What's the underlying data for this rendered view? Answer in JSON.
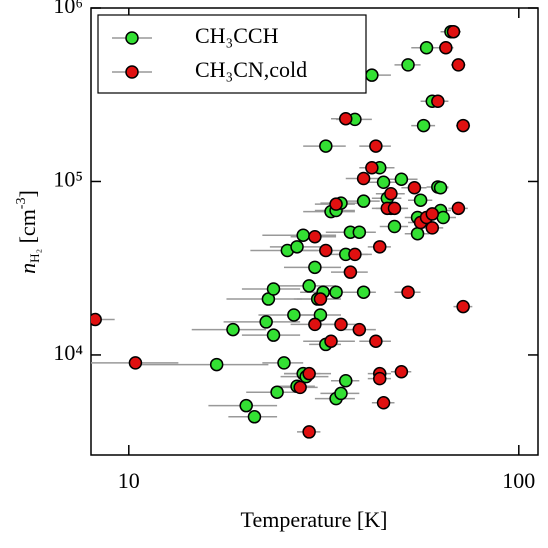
{
  "chart_data": {
    "type": "scatter",
    "xlabel": "Temperature [K]",
    "ylabel": {
      "var": "n",
      "sub": "H₂",
      "unit": " [cm",
      "sup": "-3",
      "end": "]"
    },
    "xlog": true,
    "ylog": true,
    "xlim": [
      8,
      112
    ],
    "ylim": [
      2650,
      1000000
    ],
    "xticks": [
      10,
      100
    ],
    "yticks": [
      {
        "value": 10000,
        "label": "10⁴"
      },
      {
        "value": 100000,
        "label": "10⁵"
      },
      {
        "value": 1000000,
        "label": "10⁶"
      }
    ],
    "legend": "upper left",
    "errorbar_color": "#999999",
    "series": [
      {
        "name": "CH₃CCH",
        "color": "#33e033",
        "x": [
          16.8,
          18.5,
          20,
          21,
          24,
          25,
          25.5,
          22.5,
          22.8,
          23.5,
          23.5,
          26.5,
          27,
          28,
          28,
          28.5,
          27,
          29,
          30,
          30.5,
          31,
          31.5,
          32,
          32,
          33,
          34,
          35,
          34,
          35,
          36,
          34,
          36,
          37,
          38,
          39,
          40,
          40,
          42,
          44,
          45,
          46,
          47,
          48,
          50,
          52,
          55,
          56,
          57,
          58,
          60,
          62,
          63,
          64,
          67,
          63,
          55
        ],
        "values": [
          8800,
          14000,
          5100,
          4400,
          6100,
          9000,
          40000,
          15500,
          21000,
          24000,
          13000,
          17000,
          42000,
          49000,
          7800,
          7500,
          6600,
          25000,
          32000,
          21000,
          17000,
          23000,
          11500,
          160000,
          67000,
          68000,
          75000,
          5600,
          6000,
          7100,
          23000,
          38000,
          51000,
          228000,
          51000,
          77000,
          23000,
          410000,
          120000,
          99000,
          80000,
          70000,
          55000,
          103000,
          470000,
          62000,
          78000,
          210000,
          590000,
          290000,
          93000,
          68000,
          62000,
          730000,
          92000,
          50000
        ],
        "xerr": [
          6,
          4,
          4,
          3,
          4,
          3,
          5,
          5,
          5,
          4,
          4,
          5,
          4,
          6,
          3,
          4,
          3,
          5,
          5,
          4,
          4,
          4,
          3,
          4,
          5,
          4,
          4,
          4,
          4,
          3,
          5,
          5,
          5,
          4,
          4,
          4,
          3,
          5,
          4,
          5,
          4,
          4,
          4,
          5,
          4,
          4,
          4,
          4,
          5,
          4,
          4,
          4,
          5,
          4,
          3,
          4
        ]
      },
      {
        "name": "CH₃CN,cold",
        "color": "#e01010",
        "x": [
          8.2,
          10.4,
          27.5,
          29,
          29,
          30,
          30,
          31,
          32,
          33,
          34,
          35,
          36,
          37,
          38,
          39,
          40,
          42,
          43,
          43,
          44,
          44,
          44,
          45,
          46,
          47,
          48,
          50,
          52,
          54,
          56,
          58,
          60,
          60,
          62,
          65,
          68,
          70,
          70,
          72,
          72
        ],
        "values": [
          16000,
          9000,
          6500,
          3600,
          7800,
          15000,
          48000,
          21000,
          40000,
          12000,
          74000,
          15000,
          230000,
          30000,
          38000,
          14000,
          104000,
          120000,
          160000,
          12000,
          42000,
          7800,
          7300,
          5300,
          70000,
          85000,
          70000,
          8000,
          23000,
          92000,
          58000,
          62000,
          54000,
          65000,
          290000,
          590000,
          730000,
          470000,
          70000,
          210000,
          19000
        ],
        "xerr": [
          1,
          3,
          3,
          2,
          4,
          4,
          4,
          4,
          4,
          5,
          4,
          4,
          3,
          4,
          4,
          4,
          4,
          3,
          4,
          4,
          3,
          3,
          3,
          3,
          4,
          4,
          4,
          3,
          4,
          4,
          4,
          4,
          4,
          4,
          4,
          3,
          3,
          3,
          4,
          3,
          4
        ]
      }
    ]
  }
}
